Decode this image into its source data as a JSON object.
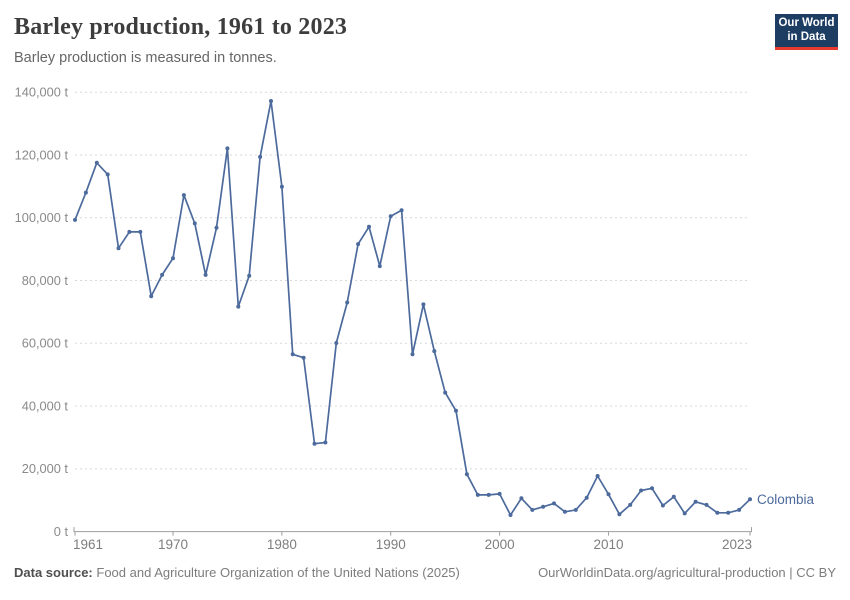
{
  "header": {
    "title": "Barley production, 1961 to 2023",
    "subtitle": "Barley production is measured in tonnes.",
    "logo": {
      "line1": "Our World",
      "line2": "in Data",
      "bg_color": "#1d3d63",
      "bar_color": "#e8392e",
      "text_color": "#ffffff"
    }
  },
  "chart_data": {
    "type": "line",
    "title": "Barley production, 1961 to 2023",
    "ylabel": "",
    "xlabel": "",
    "unit": "t",
    "label_suffix": " t",
    "grid": "horizontal-dashed",
    "legend_position": "end-of-line",
    "xlim": [
      1961,
      2023
    ],
    "ylim": [
      0,
      140000
    ],
    "x_ticks": [
      1961,
      1970,
      1980,
      1990,
      2000,
      2010,
      2023
    ],
    "y_ticks": [
      0,
      20000,
      40000,
      60000,
      80000,
      100000,
      120000,
      140000
    ],
    "series": [
      {
        "name": "Colombia",
        "color": "#4c6a9c",
        "x": [
          1961,
          1962,
          1963,
          1964,
          1965,
          1966,
          1967,
          1968,
          1969,
          1970,
          1971,
          1972,
          1973,
          1974,
          1975,
          1976,
          1977,
          1978,
          1979,
          1980,
          1981,
          1982,
          1983,
          1984,
          1985,
          1986,
          1987,
          1988,
          1989,
          1990,
          1991,
          1992,
          1993,
          1994,
          1995,
          1996,
          1997,
          1998,
          1999,
          2000,
          2001,
          2002,
          2003,
          2004,
          2005,
          2006,
          2007,
          2008,
          2009,
          2010,
          2011,
          2012,
          2013,
          2014,
          2015,
          2016,
          2017,
          2018,
          2019,
          2020,
          2021,
          2022,
          2023
        ],
        "values": [
          99300,
          108000,
          117500,
          113800,
          90300,
          95500,
          95500,
          75000,
          81800,
          87100,
          107200,
          98200,
          81800,
          96800,
          122100,
          71700,
          81500,
          119400,
          137200,
          109900,
          56500,
          55400,
          28000,
          28400,
          60100,
          73000,
          91600,
          97100,
          84600,
          100500,
          102400,
          56500,
          72400,
          57500,
          44300,
          38500,
          18300,
          11700,
          11700,
          12000,
          5300,
          10600,
          6900,
          7900,
          9000,
          6300,
          6900,
          10800,
          17700,
          11900,
          5500,
          8500,
          13100,
          13800,
          8300,
          11100,
          5800,
          9500,
          8500,
          6000,
          6000,
          6900,
          10300
        ]
      }
    ]
  },
  "footer": {
    "source_label": "Data source:",
    "source_text": "Food and Agriculture Organization of the United Nations (2025)",
    "link_text": "OurWorldinData.org/agricultural-production | CC BY"
  }
}
